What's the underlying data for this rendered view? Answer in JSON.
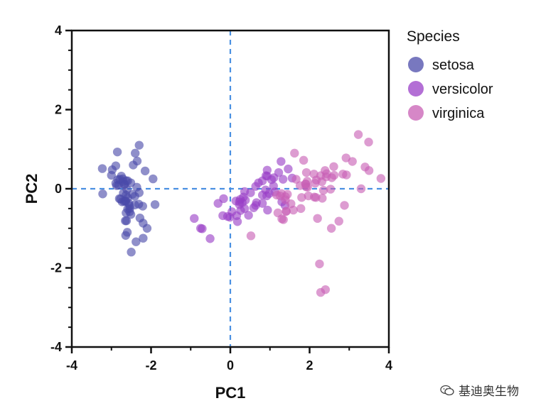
{
  "chart_data": {
    "type": "scatter",
    "xlabel": "PC1",
    "ylabel": "PC2",
    "xlim": [
      -4,
      4
    ],
    "ylim": [
      -4,
      4
    ],
    "xticks": [
      -4,
      -2,
      0,
      2,
      4
    ],
    "yticks": [
      -4,
      -2,
      0,
      2,
      4
    ],
    "reference_lines": {
      "x": 0,
      "y": 0,
      "style": "dashed",
      "color": "#4a90e2"
    },
    "legend": {
      "title": "Species",
      "placement": "right"
    },
    "series": [
      {
        "name": "setosa",
        "color": "#4b4baa",
        "points": [
          [
            -2.68,
            -0.32
          ],
          [
            -2.71,
            0.18
          ],
          [
            -2.89,
            0.14
          ],
          [
            -2.75,
            0.32
          ],
          [
            -2.73,
            -0.33
          ],
          [
            -2.28,
            -0.74
          ],
          [
            -2.82,
            0.09
          ],
          [
            -2.63,
            -0.16
          ],
          [
            -2.89,
            0.58
          ],
          [
            -2.67,
            0.11
          ],
          [
            -2.51,
            -0.65
          ],
          [
            -2.61,
            -0.02
          ],
          [
            -2.79,
            0.24
          ],
          [
            -3.23,
            0.51
          ],
          [
            -2.64,
            -1.18
          ],
          [
            -2.38,
            -1.34
          ],
          [
            -2.62,
            -0.81
          ],
          [
            -2.65,
            -0.31
          ],
          [
            -2.2,
            -0.87
          ],
          [
            -2.59,
            -0.51
          ],
          [
            -2.31,
            -0.39
          ],
          [
            -2.54,
            -0.43
          ],
          [
            -3.22,
            -0.13
          ],
          [
            -2.3,
            -0.1
          ],
          [
            -2.36,
            0.04
          ],
          [
            -2.51,
            0.15
          ],
          [
            -2.47,
            -0.14
          ],
          [
            -2.56,
            -0.37
          ],
          [
            -2.64,
            -0.31
          ],
          [
            -2.63,
            0.2
          ],
          [
            -2.59,
            0.2
          ],
          [
            -2.41,
            -0.41
          ],
          [
            -2.65,
            -0.81
          ],
          [
            -2.6,
            -1.1
          ],
          [
            -2.67,
            0.11
          ],
          [
            -2.87,
            0.08
          ],
          [
            -2.63,
            -0.61
          ],
          [
            -2.8,
            -0.25
          ],
          [
            -2.98,
            0.48
          ],
          [
            -2.59,
            -0.23
          ],
          [
            -2.77,
            -0.26
          ],
          [
            -2.85,
            0.93
          ],
          [
            -3.0,
            0.34
          ],
          [
            -2.41,
            -0.19
          ],
          [
            -2.21,
            -0.44
          ],
          [
            -2.71,
            0.25
          ],
          [
            -2.54,
            -0.5
          ],
          [
            -2.84,
            0.23
          ],
          [
            -2.54,
            -0.58
          ],
          [
            -2.7,
            -0.11
          ],
          [
            -2.3,
            1.1
          ],
          [
            -2.1,
            -1.0
          ],
          [
            -2.35,
            0.7
          ],
          [
            -2.2,
            -1.25
          ],
          [
            -2.45,
            0.6
          ],
          [
            -1.9,
            -0.4
          ],
          [
            -2.15,
            0.45
          ],
          [
            -2.5,
            -1.6
          ],
          [
            -1.95,
            0.25
          ],
          [
            -2.4,
            0.9
          ]
        ]
      },
      {
        "name": "versicolor",
        "color": "#9a3fc7",
        "points": [
          [
            1.28,
            0.69
          ],
          [
            0.93,
            0.32
          ],
          [
            1.46,
            0.5
          ],
          [
            0.18,
            -0.83
          ],
          [
            1.09,
            0.07
          ],
          [
            0.64,
            -0.42
          ],
          [
            1.1,
            0.28
          ],
          [
            -0.75,
            -1.0
          ],
          [
            1.04,
            0.23
          ],
          [
            -0.01,
            -0.72
          ],
          [
            -0.51,
            -1.26
          ],
          [
            0.51,
            -0.1
          ],
          [
            0.26,
            -0.55
          ],
          [
            0.98,
            -0.12
          ],
          [
            -0.17,
            -0.25
          ],
          [
            0.93,
            0.47
          ],
          [
            0.66,
            -0.35
          ],
          [
            0.23,
            -0.33
          ],
          [
            0.94,
            -0.54
          ],
          [
            0.04,
            -0.58
          ],
          [
            1.12,
            -0.08
          ],
          [
            0.36,
            -0.07
          ],
          [
            1.3,
            -0.33
          ],
          [
            0.92,
            -0.18
          ],
          [
            0.71,
            0.15
          ],
          [
            0.9,
            0.33
          ],
          [
            1.33,
            0.24
          ],
          [
            1.56,
            0.27
          ],
          [
            0.81,
            -0.16
          ],
          [
            -0.31,
            -0.37
          ],
          [
            -0.07,
            -0.7
          ],
          [
            -0.19,
            -0.68
          ],
          [
            0.14,
            -0.31
          ],
          [
            1.38,
            -0.42
          ],
          [
            0.59,
            -0.48
          ],
          [
            0.81,
            0.2
          ],
          [
            1.22,
            0.41
          ],
          [
            0.81,
            -0.37
          ],
          [
            0.25,
            -0.27
          ],
          [
            0.16,
            -0.68
          ],
          [
            0.46,
            -0.67
          ],
          [
            0.89,
            -0.03
          ],
          [
            0.23,
            -0.4
          ],
          [
            -0.71,
            -1.01
          ],
          [
            0.36,
            -0.5
          ],
          [
            0.33,
            -0.21
          ],
          [
            0.38,
            -0.29
          ],
          [
            0.64,
            0.06
          ],
          [
            -0.91,
            -0.75
          ],
          [
            0.3,
            -0.35
          ]
        ]
      },
      {
        "name": "virginica",
        "color": "#c85fb4",
        "points": [
          [
            2.53,
            -0.01
          ],
          [
            1.41,
            -0.57
          ],
          [
            2.62,
            0.34
          ],
          [
            1.97,
            -0.18
          ],
          [
            2.35,
            -0.04
          ],
          [
            3.4,
            0.55
          ],
          [
            0.52,
            -1.19
          ],
          [
            2.93,
            0.35
          ],
          [
            2.32,
            -0.24
          ],
          [
            2.92,
            0.78
          ],
          [
            1.66,
            0.24
          ],
          [
            1.8,
            -0.22
          ],
          [
            2.17,
            0.22
          ],
          [
            1.34,
            -0.78
          ],
          [
            1.59,
            -0.54
          ],
          [
            1.9,
            0.12
          ],
          [
            1.95,
            0.04
          ],
          [
            3.49,
            1.18
          ],
          [
            3.8,
            0.26
          ],
          [
            1.3,
            -0.76
          ],
          [
            2.43,
            0.38
          ],
          [
            1.2,
            -0.61
          ],
          [
            3.5,
            0.46
          ],
          [
            1.39,
            -0.2
          ],
          [
            2.28,
            0.33
          ],
          [
            2.61,
            0.56
          ],
          [
            1.26,
            -0.18
          ],
          [
            1.29,
            -0.12
          ],
          [
            2.12,
            -0.21
          ],
          [
            2.39,
            0.46
          ],
          [
            2.84,
            0.37
          ],
          [
            3.23,
            1.37
          ],
          [
            2.16,
            -0.22
          ],
          [
            1.44,
            -0.14
          ],
          [
            1.78,
            -0.5
          ],
          [
            3.08,
            0.69
          ],
          [
            2.14,
            0.14
          ],
          [
            1.91,
            0.05
          ],
          [
            1.17,
            -0.16
          ],
          [
            2.11,
            0.37
          ],
          [
            2.31,
            0.18
          ],
          [
            1.92,
            0.41
          ],
          [
            1.41,
            -0.57
          ],
          [
            2.56,
            0.28
          ],
          [
            2.42,
            0.3
          ],
          [
            1.94,
            0.19
          ],
          [
            1.53,
            -0.38
          ],
          [
            1.76,
            0.08
          ],
          [
            1.9,
            0.12
          ],
          [
            1.39,
            -0.28
          ],
          [
            3.3,
            0.0
          ],
          [
            2.25,
            -1.9
          ],
          [
            2.4,
            -2.55
          ],
          [
            2.28,
            -2.62
          ],
          [
            2.88,
            -0.42
          ],
          [
            2.74,
            -0.82
          ],
          [
            2.55,
            -1.0
          ],
          [
            1.62,
            0.9
          ],
          [
            1.85,
            0.72
          ],
          [
            2.2,
            -0.75
          ]
        ]
      }
    ]
  },
  "watermark": {
    "text": "基迪奥生物",
    "icon": "wechat-icon"
  }
}
